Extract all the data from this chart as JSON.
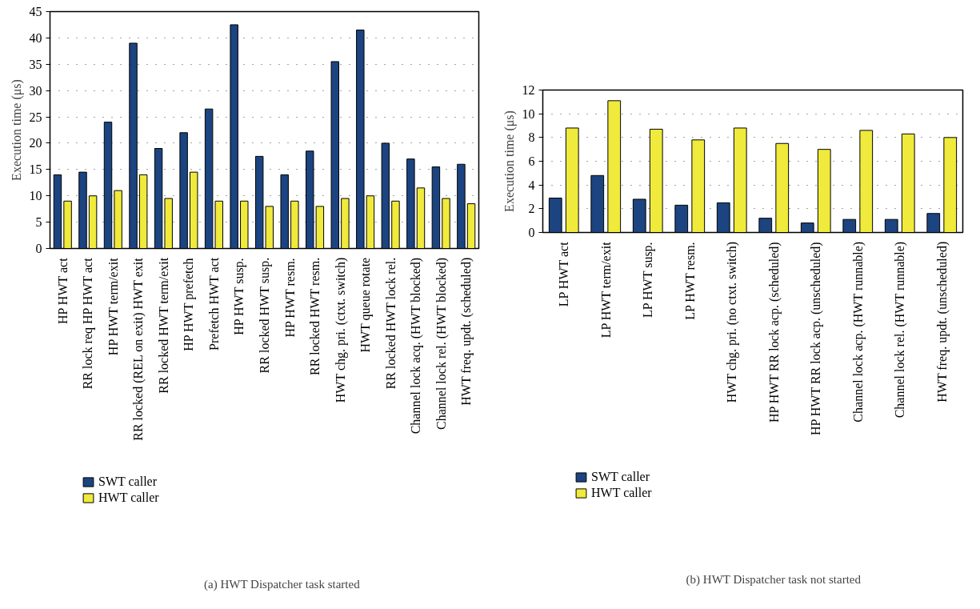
{
  "chart_data": [
    {
      "type": "bar",
      "ylabel": "Execution time (μs)",
      "annotations": [
        "(a)  HWT Dispatcher task started"
      ],
      "categories": [
        "HP HWT act",
        "RR lock req HP HWT act",
        "HP HWT term/exit",
        "RR locked (REL on exit) HWT exit",
        "RR locked HWT term/exit",
        "HP HWT prefetch",
        "Prefetch HWT act",
        "HP HWT susp.",
        "RR locked HWT susp.",
        "HP HWT resm.",
        "RR locked HWT resm.",
        "HWT chg. pri. (ctxt. switch)",
        "HWT queue rotate",
        "RR locked HWT lock rel.",
        "Channel lock acq. (HWT blocked)",
        "Channel lock rel. (HWT blocked)",
        "HWT freq. updt. (scheduled)"
      ],
      "series": [
        {
          "name": "SWT caller",
          "color": "#1b4480",
          "values": [
            14,
            14.5,
            24,
            39,
            19,
            22,
            26.5,
            42.5,
            17.5,
            14,
            18.5,
            35.5,
            41.5,
            20,
            17,
            15.5,
            16
          ]
        },
        {
          "name": "HWT caller",
          "color": "#f0ea3c",
          "values": [
            9,
            10,
            11,
            14,
            9.5,
            14.5,
            9,
            9,
            8,
            9,
            8,
            9.5,
            10,
            9,
            11.5,
            9.5,
            8.5
          ]
        }
      ],
      "ylim": [
        0,
        45
      ],
      "yticks": [
        0,
        5,
        10,
        15,
        20,
        25,
        30,
        35,
        40,
        45
      ],
      "grid": "y",
      "legend": "bottom left"
    },
    {
      "type": "bar",
      "ylabel": "Execution time (μs)",
      "annotations": [
        "(b)  HWT Dispatcher task not started"
      ],
      "categories": [
        "LP HWT act",
        "LP HWT term/exit",
        "LP HWT susp.",
        "LP HWT resm.",
        "HWT chg. pri. (no ctxt. switch)",
        "HP HWT RR lock acp. (scheduled)",
        "HP HWT RR lock acp. (unscheduled)",
        "Channel lock acp. (HWT runnable)",
        "Channel lock rel. (HWT runnable)",
        "HWT freq. updt. (unscheduled)"
      ],
      "series": [
        {
          "name": "SWT caller",
          "color": "#1b4480",
          "values": [
            2.9,
            4.8,
            2.8,
            2.3,
            2.5,
            1.2,
            0.8,
            1.1,
            1.1,
            1.6
          ]
        },
        {
          "name": "HWT caller",
          "color": "#f0ea3c",
          "values": [
            8.8,
            11.1,
            8.7,
            7.8,
            8.8,
            7.5,
            7.0,
            8.6,
            8.3,
            8.0
          ]
        }
      ],
      "ylim": [
        0,
        12
      ],
      "yticks": [
        0,
        2,
        4,
        6,
        8,
        10,
        12
      ],
      "grid": "y",
      "legend": "bottom left"
    }
  ]
}
